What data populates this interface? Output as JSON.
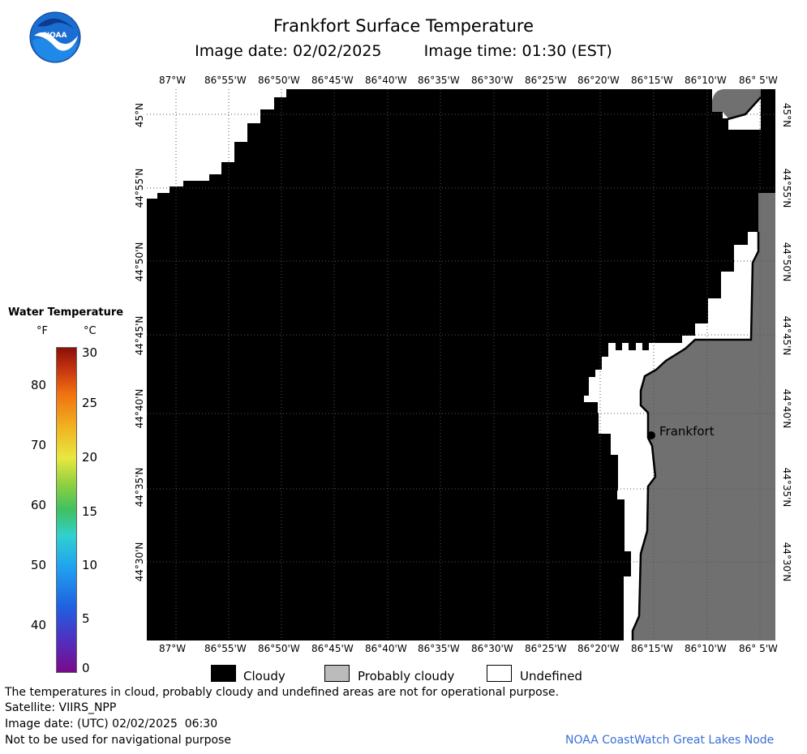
{
  "header": {
    "title": "Frankfort Surface Temperature",
    "image_date": "Image date: 02/02/2025",
    "image_time": "Image time: 01:30 (EST)"
  },
  "logo": {
    "text": "NOAA"
  },
  "map": {
    "lon_labels": [
      "87°W",
      "86°55'W",
      "86°50'W",
      "86°45'W",
      "86°40'W",
      "86°35'W",
      "86°30'W",
      "86°25'W",
      "86°20'W",
      "86°15'W",
      "86°10'W",
      "86° 5'W"
    ],
    "lat_labels": [
      "45°N",
      "44°55'N",
      "44°50'N",
      "44°45'N",
      "44°40'N",
      "44°35'N",
      "44°30'N"
    ],
    "city": {
      "name": "Frankfort"
    },
    "colors": {
      "cloudy": "#000000",
      "probably_cloudy": "#707070",
      "undefined": "#ffffff"
    }
  },
  "colorbar": {
    "title": "Water Temperature",
    "unit_f": "°F",
    "unit_c": "°C",
    "f_ticks": [
      "80",
      "70",
      "60",
      "50",
      "40"
    ],
    "c_ticks": [
      "30",
      "25",
      "20",
      "15",
      "10",
      "5",
      "0"
    ],
    "range_c": [
      0,
      30
    ]
  },
  "legend": {
    "cloudy": "Cloudy",
    "probably_cloudy": "Probably cloudy",
    "undefined": "Undefined"
  },
  "footer": {
    "note": "The temperatures in cloud, probably cloudy and undefined areas are not for operational purpose.",
    "satellite": "Satellite: VIIRS_NPP",
    "utc_date": "Image date: (UTC) 02/02/2025  06:30",
    "nav": "Not to be used for navigational purpose",
    "credit": "NOAA CoastWatch Great Lakes Node"
  }
}
